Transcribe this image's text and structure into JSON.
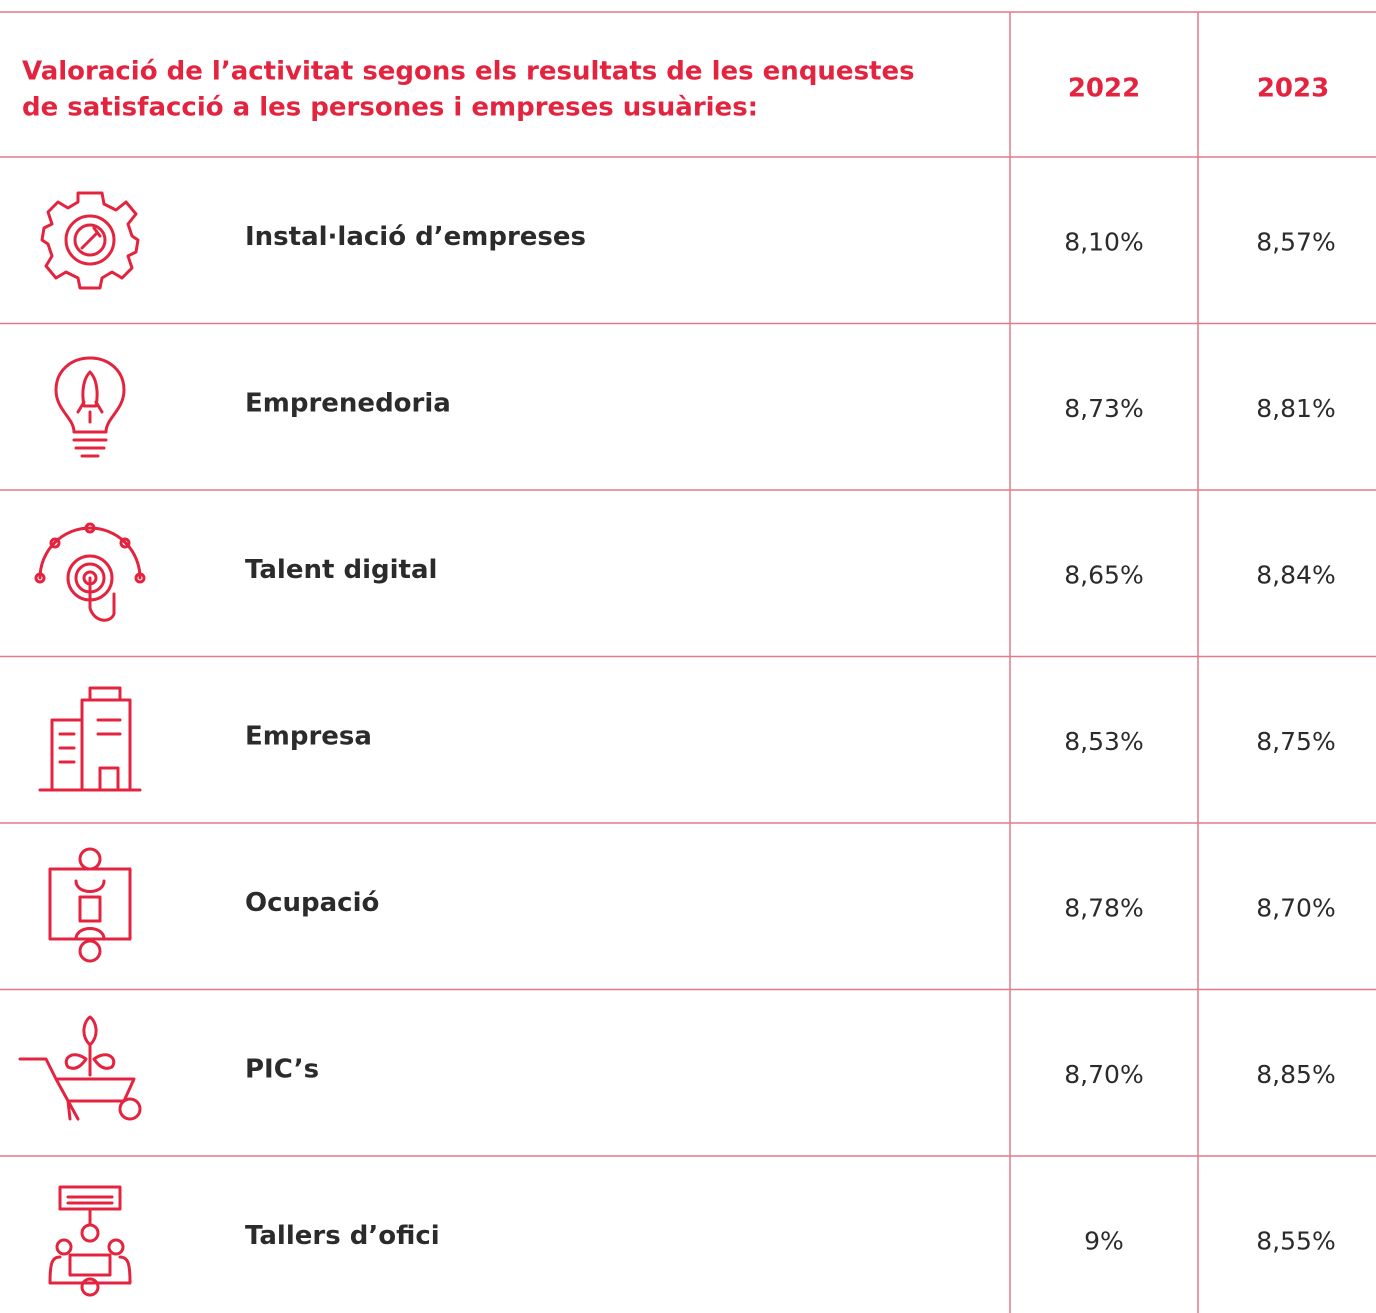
{
  "header": {
    "title_lines": [
      "Valoració de l’activitat segons els resultats de les enquestes",
      "de satisfacció a les persones i empreses usuàries:"
    ],
    "columns": [
      "2022",
      "2023"
    ]
  },
  "table": {
    "rows": [
      [
        "Instal·lació d’empreses",
        "8,10%",
        "8,57%"
      ],
      [
        "Emprenedoria",
        "8,73%",
        "8,81%"
      ],
      [
        "Talent digital",
        "8,65%",
        "8,84%"
      ],
      [
        "Empresa",
        "8,53%",
        "8,75%"
      ],
      [
        "Ocupació",
        "8,78%",
        "8,70%"
      ],
      [
        "PIC’s",
        "8,70%",
        "8,85%"
      ],
      [
        "Tallers d’ofici",
        "9%",
        "8,55%"
      ]
    ]
  }
}
